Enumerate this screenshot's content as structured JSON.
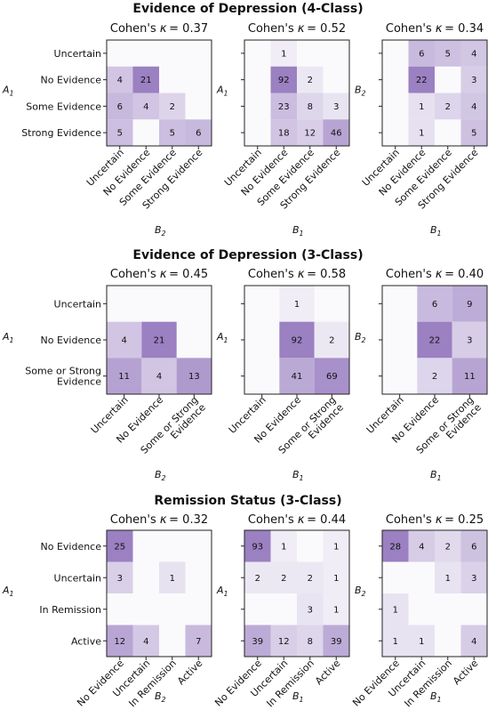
{
  "colors": {
    "max": "#9b80c2",
    "min": "#fafafc"
  },
  "chart_data": [
    {
      "type": "heatmap",
      "title": "Evidence of Depression (4-Class)",
      "row_labels": [
        [
          "Uncertain"
        ],
        [
          "No Evidence"
        ],
        [
          "Some Evidence"
        ],
        [
          "Strong Evidence"
        ]
      ],
      "col_labels": [
        [
          "Uncertain"
        ],
        [
          "No Evidence"
        ],
        [
          "Some Evidence"
        ],
        [
          "Strong Evidence"
        ]
      ],
      "panels": [
        {
          "title_prefix": "Cohen's ",
          "kappa_symbol": "κ",
          "kappa": "= 0.37",
          "ylabel": "A",
          "ylabel_sub": "1",
          "xlabel": "B",
          "xlabel_sub": "2",
          "matrix": [
            [
              null,
              null,
              null,
              null
            ],
            [
              4,
              21,
              null,
              null
            ],
            [
              6,
              4,
              2,
              null
            ],
            [
              5,
              null,
              5,
              6
            ]
          ]
        },
        {
          "title_prefix": "Cohen's ",
          "kappa_symbol": "κ",
          "kappa": "= 0.52",
          "ylabel": "A",
          "ylabel_sub": "1",
          "xlabel": "B",
          "xlabel_sub": "1",
          "matrix": [
            [
              null,
              1,
              null,
              null
            ],
            [
              null,
              92,
              2,
              null
            ],
            [
              null,
              23,
              8,
              3
            ],
            [
              null,
              18,
              12,
              46
            ]
          ]
        },
        {
          "title_prefix": "Cohen's ",
          "kappa_symbol": "κ",
          "kappa": "= 0.34",
          "ylabel": "B",
          "ylabel_sub": "2",
          "xlabel": "B",
          "xlabel_sub": "1",
          "matrix": [
            [
              null,
              6,
              5,
              4
            ],
            [
              null,
              22,
              null,
              3
            ],
            [
              null,
              1,
              2,
              4
            ],
            [
              null,
              1,
              null,
              5
            ]
          ]
        }
      ]
    },
    {
      "type": "heatmap",
      "title": "Evidence of Depression (3-Class)",
      "row_labels": [
        [
          "Uncertain"
        ],
        [
          "No Evidence"
        ],
        [
          "Some or Strong",
          "Evidence"
        ]
      ],
      "col_labels": [
        [
          "Uncertain"
        ],
        [
          "No Evidence"
        ],
        [
          "Some or Strong",
          "Evidence"
        ]
      ],
      "panels": [
        {
          "title_prefix": "Cohen's ",
          "kappa_symbol": "κ",
          "kappa": "= 0.45",
          "ylabel": "A",
          "ylabel_sub": "1",
          "xlabel": "B",
          "xlabel_sub": "2",
          "matrix": [
            [
              null,
              null,
              null
            ],
            [
              4,
              21,
              null
            ],
            [
              11,
              4,
              13
            ]
          ]
        },
        {
          "title_prefix": "Cohen's ",
          "kappa_symbol": "κ",
          "kappa": "= 0.58",
          "ylabel": "A",
          "ylabel_sub": "1",
          "xlabel": "B",
          "xlabel_sub": "1",
          "matrix": [
            [
              null,
              1,
              null
            ],
            [
              null,
              92,
              2
            ],
            [
              null,
              41,
              69
            ]
          ]
        },
        {
          "title_prefix": "Cohen's ",
          "kappa_symbol": "κ",
          "kappa": "= 0.40",
          "ylabel": "B",
          "ylabel_sub": "2",
          "xlabel": "B",
          "xlabel_sub": "1",
          "matrix": [
            [
              null,
              6,
              9
            ],
            [
              null,
              22,
              3
            ],
            [
              null,
              2,
              11
            ]
          ]
        }
      ]
    },
    {
      "type": "heatmap",
      "title": "Remission Status (3-Class)",
      "row_labels": [
        [
          "No Evidence"
        ],
        [
          "Uncertain"
        ],
        [
          "In Remission"
        ],
        [
          "Active"
        ]
      ],
      "col_labels": [
        [
          "No Evidence"
        ],
        [
          "Uncertain"
        ],
        [
          "In Remission"
        ],
        [
          "Active"
        ]
      ],
      "panels": [
        {
          "title_prefix": "Cohen's ",
          "kappa_symbol": "κ",
          "kappa": "= 0.32",
          "ylabel": "A",
          "ylabel_sub": "1",
          "xlabel": "B",
          "xlabel_sub": "2",
          "matrix": [
            [
              25,
              null,
              null,
              null
            ],
            [
              3,
              null,
              1,
              null
            ],
            [
              null,
              null,
              null,
              null
            ],
            [
              12,
              4,
              null,
              7
            ]
          ]
        },
        {
          "title_prefix": "Cohen's ",
          "kappa_symbol": "κ",
          "kappa": "= 0.44",
          "ylabel": "A",
          "ylabel_sub": "1",
          "xlabel": "B",
          "xlabel_sub": "1",
          "matrix": [
            [
              93,
              1,
              null,
              1
            ],
            [
              2,
              2,
              2,
              1
            ],
            [
              null,
              null,
              3,
              1
            ],
            [
              39,
              12,
              8,
              39
            ]
          ]
        },
        {
          "title_prefix": "Cohen's ",
          "kappa_symbol": "κ",
          "kappa": "= 0.25",
          "ylabel": "B",
          "ylabel_sub": "2",
          "xlabel": "B",
          "xlabel_sub": "1",
          "matrix": [
            [
              28,
              4,
              2,
              6
            ],
            [
              null,
              null,
              1,
              3
            ],
            [
              1,
              null,
              null,
              null
            ],
            [
              1,
              1,
              null,
              4
            ]
          ]
        }
      ]
    }
  ]
}
